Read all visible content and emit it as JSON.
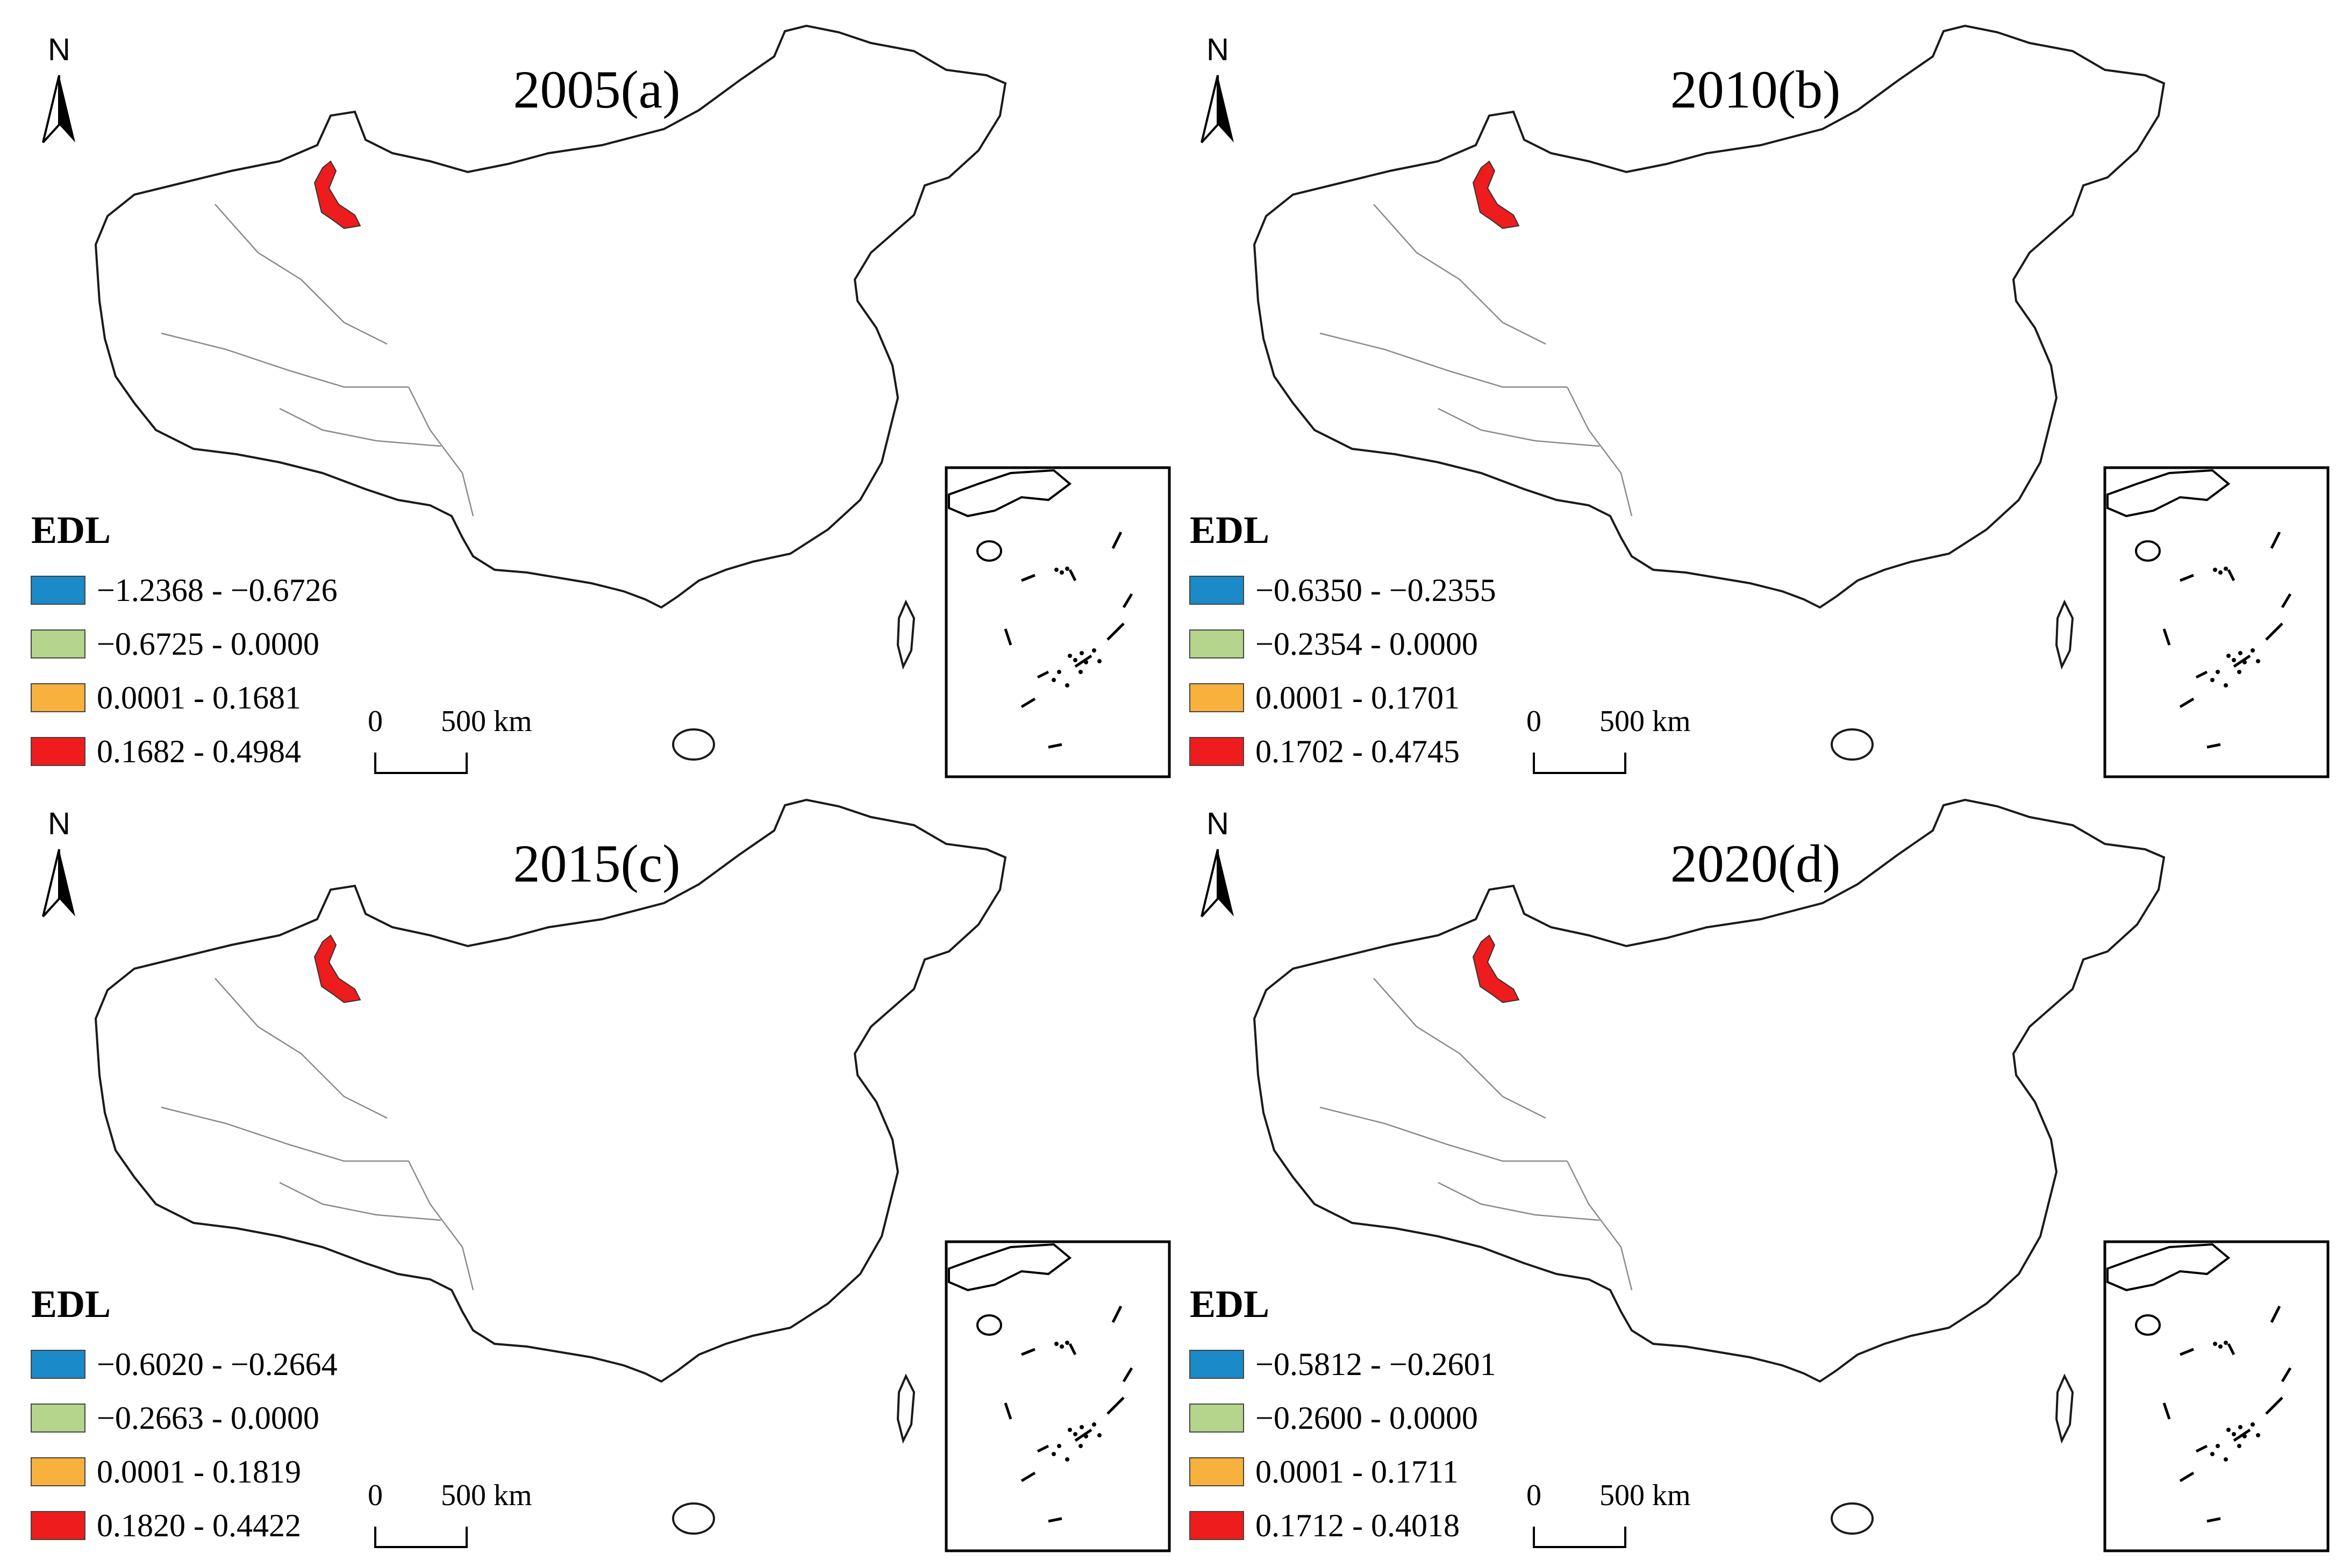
{
  "figure": {
    "legend_title": "EDL",
    "north_label": "N",
    "scale_zero": "0",
    "scale_distance": "500 km",
    "class_colors": [
      "#1a8ac8",
      "#b5d48c",
      "#f7b13c",
      "#ee1c1c"
    ],
    "panels": [
      {
        "title": "2005(a)",
        "legend": [
          "−1.2368 - −0.6726",
          "−0.6725 - 0.0000",
          "0.0001 - 0.1681",
          "0.1682 - 0.4984"
        ]
      },
      {
        "title": "2010(b)",
        "legend": [
          "−0.6350 - −0.2355",
          "−0.2354 - 0.0000",
          "0.0001 - 0.1701",
          "0.1702 - 0.4745"
        ]
      },
      {
        "title": "2015(c)",
        "legend": [
          "−0.6020 - −0.2664",
          "−0.2663 - 0.0000",
          "0.0001 - 0.1819",
          "0.1820 - 0.4422"
        ]
      },
      {
        "title": "2020(d)",
        "legend": [
          "−0.5812 - −0.2601",
          "−0.2600 - 0.0000",
          "0.0001 - 0.1711",
          "0.1712 - 0.4018"
        ]
      }
    ]
  }
}
